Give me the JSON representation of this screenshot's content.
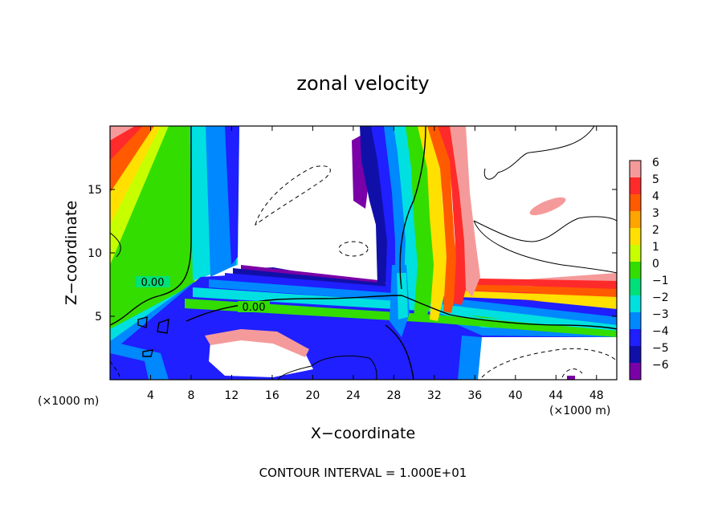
{
  "chart_data": {
    "type": "heatmap",
    "title": "zonal velocity",
    "xlabel": "X−coordinate",
    "ylabel": "Z−coordinate",
    "x_unit_left": "(×1000 m)",
    "x_unit_right": "(×1000 m)",
    "xlim": [
      0,
      50
    ],
    "ylim": [
      0,
      20
    ],
    "xticks": [
      4,
      8,
      12,
      16,
      20,
      24,
      28,
      32,
      36,
      40,
      44,
      48
    ],
    "xtick_labels": [
      "4",
      "8",
      "12",
      "16",
      "20",
      "24",
      "28",
      "32",
      "36",
      "40",
      "44",
      "48"
    ],
    "yticks": [
      5,
      10,
      15
    ],
    "ytick_labels": [
      "5",
      "10",
      "15"
    ],
    "contour_labels": [
      "0.00",
      "0.00"
    ],
    "footnote": "CONTOUR INTERVAL = 1.000E+01",
    "colorbar": {
      "levels": [
        6,
        5,
        4,
        3,
        2,
        1,
        0,
        -1,
        -2,
        -3,
        -4,
        -5,
        -6
      ],
      "labels": [
        "6",
        "5",
        "4",
        "3",
        "2",
        "1",
        "0",
        "−1",
        "−2",
        "−3",
        "−4",
        "−5",
        "−6"
      ],
      "colors": [
        "#f59a9a",
        "#ff2b2b",
        "#ff5a00",
        "#ffa500",
        "#ffe000",
        "#c8ff00",
        "#33dd00",
        "#00e07a",
        "#00e0e0",
        "#0088ff",
        "#1f1fff",
        "#1010a8",
        "#7a00a8"
      ]
    },
    "features": [
      {
        "name": "left-column",
        "x": [
          0,
          12
        ],
        "z": [
          0,
          20
        ]
      },
      {
        "name": "central-band",
        "x": [
          10,
          50
        ],
        "z": [
          0,
          9
        ]
      },
      {
        "name": "right-column",
        "x": [
          24,
          35
        ],
        "z": [
          4,
          20
        ]
      }
    ]
  }
}
